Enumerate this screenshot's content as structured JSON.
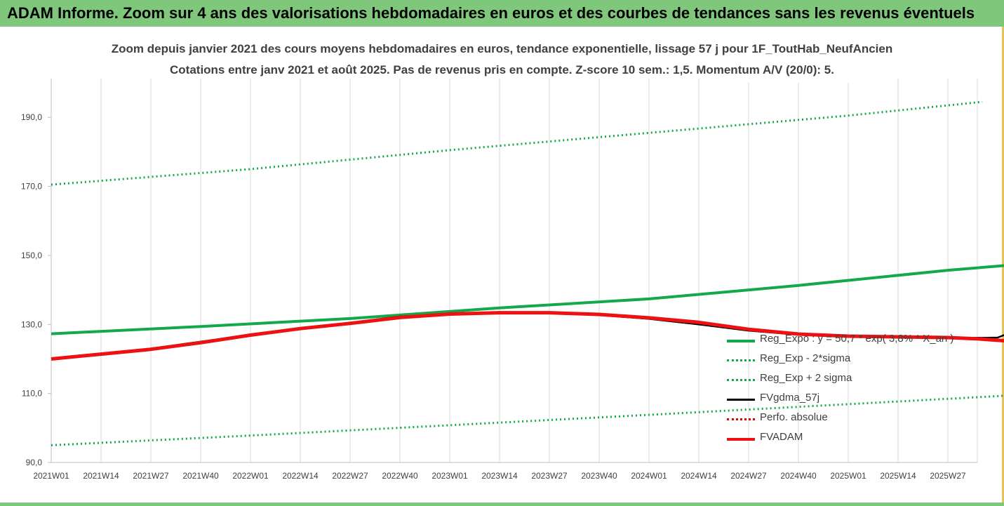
{
  "banner": {
    "title": "ADAM Informe. Zoom sur 4 ans des valorisations hebdomadaires en euros et des courbes de tendances sans les revenus éventuels"
  },
  "colors": {
    "banner_bg": "#7fc77a",
    "reg_expo": "#13a84a",
    "fvgdma": "#000000",
    "perfo": "#e00000",
    "fvadam": "#ee1111"
  },
  "chart_data": {
    "type": "line",
    "title_line1": "Zoom depuis janvier 2021 des cours moyens hebdomadaires en euros, tendance exponentielle, lissage 57 j pour 1F_ToutHab_NeufAncien",
    "title_line2": "Cotations entre janv 2021 et août 2025.  Pas de revenus pris en compte. Z-score 10 sem.: 1,5. Momentum A/V (20/0): 5.",
    "x_ticks": [
      "2021W01",
      "2021W14",
      "2021W27",
      "2021W40",
      "2022W01",
      "2022W14",
      "2022W27",
      "2022W40",
      "2023W01",
      "2023W14",
      "2023W27",
      "2023W40",
      "2024W01",
      "2024W14",
      "2024W27",
      "2024W40",
      "2025W01",
      "2025W14",
      "2025W27"
    ],
    "y_ticks": [
      "90,0",
      "110,0",
      "130,0",
      "150,0",
      "170,0",
      "190,0"
    ],
    "ylim": [
      90,
      200
    ],
    "xlim_weeks": [
      0,
      243
    ],
    "grid": "vertical",
    "legend_position": "bottom-right",
    "series": [
      {
        "name": "Reg_Expo : y = 50,7 * exp( 3,8% *  X_an )",
        "style": "solid-thick",
        "color": "#13a84a",
        "points": [
          [
            0,
            127.3
          ],
          [
            39,
            129.4
          ],
          [
            78,
            131.7
          ],
          [
            117,
            134.8
          ],
          [
            156,
            137.4
          ],
          [
            195,
            141.3
          ],
          [
            234,
            145.7
          ],
          [
            273,
            149.3
          ],
          [
            304,
            151.9
          ]
        ]
      },
      {
        "name": "Reg_Exp - 2*sigma",
        "style": "dotted",
        "color": "#13a84a",
        "points": [
          [
            0,
            170.5
          ],
          [
            52,
            175.0
          ],
          [
            104,
            180.5
          ],
          [
            156,
            185.5
          ],
          [
            208,
            190.5
          ],
          [
            243,
            194.5
          ]
        ]
      },
      {
        "name": "Reg_Exp + 2 sigma",
        "style": "dotted",
        "color": "#13a84a",
        "points": [
          [
            0,
            95.0
          ],
          [
            52,
            97.8
          ],
          [
            104,
            100.8
          ],
          [
            156,
            103.8
          ],
          [
            208,
            106.9
          ],
          [
            260,
            110.0
          ],
          [
            304,
            113.2
          ]
        ]
      },
      {
        "name": "FVgdma_57j",
        "style": "solid",
        "color": "#000000",
        "points": [
          [
            0,
            120.2
          ],
          [
            26,
            123.0
          ],
          [
            52,
            127.0
          ],
          [
            78,
            130.5
          ],
          [
            91,
            132.3
          ],
          [
            104,
            133.0
          ],
          [
            117,
            133.4
          ],
          [
            130,
            133.3
          ],
          [
            143,
            132.7
          ],
          [
            156,
            131.6
          ],
          [
            169,
            130.0
          ],
          [
            182,
            128.2
          ],
          [
            195,
            127.0
          ],
          [
            208,
            126.7
          ],
          [
            221,
            126.4
          ],
          [
            234,
            126.0
          ],
          [
            247,
            126.2
          ],
          [
            250,
            127.5
          ],
          [
            260,
            127.8
          ],
          [
            273,
            128.0
          ],
          [
            286,
            128.1
          ],
          [
            304,
            128.3
          ]
        ]
      },
      {
        "name": "Perfo. absolue",
        "style": "dotted",
        "color": "#e00000",
        "points": []
      },
      {
        "name": "FVADAM",
        "style": "solid-thick",
        "color": "#ee1111",
        "points": [
          [
            0,
            120.0
          ],
          [
            13,
            121.4
          ],
          [
            26,
            122.8
          ],
          [
            39,
            124.7
          ],
          [
            52,
            126.9
          ],
          [
            65,
            128.8
          ],
          [
            78,
            130.3
          ],
          [
            91,
            132.0
          ],
          [
            104,
            133.0
          ],
          [
            117,
            133.4
          ],
          [
            130,
            133.4
          ],
          [
            143,
            132.9
          ],
          [
            156,
            131.9
          ],
          [
            169,
            130.6
          ],
          [
            182,
            128.6
          ],
          [
            195,
            127.2
          ],
          [
            208,
            126.6
          ],
          [
            221,
            126.4
          ],
          [
            234,
            126.2
          ],
          [
            242,
            125.8
          ],
          [
            247,
            125.4
          ],
          [
            250,
            125.2
          ],
          [
            252,
            127.0
          ],
          [
            260,
            127.6
          ],
          [
            273,
            127.9
          ],
          [
            286,
            128.0
          ],
          [
            300,
            128.0
          ],
          [
            304,
            128.2
          ]
        ]
      }
    ]
  }
}
